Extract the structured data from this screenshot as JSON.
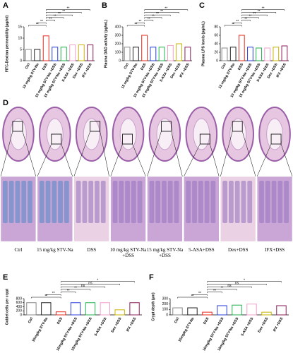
{
  "chart_data": [
    {
      "panel": "A",
      "type": "bar",
      "y_label": "FITC-Dextran permeability (μg/ml)",
      "categories": [
        "Ctrl",
        "15 mg/kg STV-Na",
        "DSS",
        "10 mg/kg STV-Na +DSS",
        "15 mg/kg STV-Na +DSS",
        "5-ASA +DSS",
        "Dex +DSS",
        "IFX +DSS"
      ],
      "values": [
        5,
        5,
        11,
        6,
        6,
        7,
        7,
        7
      ],
      "colors": [
        "#888888",
        "#222222",
        "#e8281e",
        "#2a3fd6",
        "#22b24c",
        "#f0a0c8",
        "#c8b400",
        "#8a1e5a"
      ],
      "ylim": [
        0,
        15
      ],
      "yticks": [
        0,
        5,
        10,
        15
      ],
      "significance": [
        {
          "label": "**",
          "between": [
            0,
            2
          ]
        },
        {
          "label": "**",
          "between": [
            1,
            2
          ]
        },
        {
          "label": "**",
          "between": [
            2,
            3
          ]
        },
        {
          "label": "**",
          "between": [
            2,
            4
          ]
        },
        {
          "label": "**",
          "between": [
            2,
            5
          ]
        },
        {
          "label": "**",
          "between": [
            2,
            6
          ]
        },
        {
          "label": "**",
          "between": [
            2,
            7
          ]
        }
      ]
    },
    {
      "panel": "B",
      "type": "bar",
      "y_label": "Plasma DAO activity (pg/mL)",
      "categories": [
        "Ctrl",
        "15 mg/kg STV-Na",
        "DSS",
        "10 mg/kg STV-Na +DSS",
        "15 mg/kg STV-Na +DSS",
        "5-ASA +DSS",
        "Dex +DSS",
        "IFX +DSS"
      ],
      "values": [
        160,
        160,
        300,
        160,
        160,
        180,
        200,
        160
      ],
      "colors": [
        "#888888",
        "#222222",
        "#e8281e",
        "#2a3fd6",
        "#22b24c",
        "#f0a0c8",
        "#c8b400",
        "#8a1e5a"
      ],
      "ylim": [
        0,
        400
      ],
      "yticks": [
        0,
        100,
        200,
        300,
        400
      ],
      "significance": [
        {
          "label": "**",
          "between": [
            0,
            2
          ]
        },
        {
          "label": "**",
          "between": [
            1,
            2
          ]
        },
        {
          "label": "**",
          "between": [
            2,
            3
          ]
        },
        {
          "label": "**",
          "between": [
            2,
            4
          ]
        },
        {
          "label": "**",
          "between": [
            2,
            5
          ]
        },
        {
          "label": "**",
          "between": [
            2,
            6
          ]
        },
        {
          "label": "**",
          "between": [
            2,
            7
          ]
        }
      ]
    },
    {
      "panel": "C",
      "type": "bar",
      "y_label": "Plasma LPS levels (pg/mL)",
      "categories": [
        "Ctrl",
        "15 mg/kg STV-Na",
        "DSS",
        "10 mg/kg STV-Na +DSS",
        "15 mg/kg STV-Na +DSS",
        "5-ASA +DSS",
        "Dex +DSS",
        "IFX +DSS"
      ],
      "values": [
        30,
        32,
        60,
        32,
        30,
        30,
        32,
        35
      ],
      "colors": [
        "#888888",
        "#222222",
        "#e8281e",
        "#2a3fd6",
        "#22b24c",
        "#f0a0c8",
        "#c8b400",
        "#8a1e5a"
      ],
      "ylim": [
        0,
        80
      ],
      "yticks": [
        0,
        20,
        40,
        60,
        80
      ],
      "significance": [
        {
          "label": "**",
          "between": [
            0,
            2
          ]
        },
        {
          "label": "**",
          "between": [
            1,
            2
          ]
        },
        {
          "label": "**",
          "between": [
            2,
            3
          ]
        },
        {
          "label": "**",
          "between": [
            2,
            4
          ]
        },
        {
          "label": "**",
          "between": [
            2,
            5
          ]
        },
        {
          "label": "**",
          "between": [
            2,
            6
          ]
        },
        {
          "label": "**",
          "between": [
            2,
            7
          ]
        }
      ]
    },
    {
      "panel": "E",
      "type": "bar",
      "y_label": "Goblet cells per crypt",
      "categories": [
        "Ctrl",
        "15mg/kg STV-Na",
        "DSS",
        "10mg/kg STV-Na +DSS",
        "15mg/kg STV-Na +DSS",
        "5-ASA +DSS",
        "Dex +DSS",
        "IFX +DSS"
      ],
      "values": [
        600,
        600,
        150,
        600,
        600,
        600,
        250,
        600
      ],
      "colors": [
        "#888888",
        "#222222",
        "#e8281e",
        "#2a3fd6",
        "#22b24c",
        "#f0a0c8",
        "#c8b400",
        "#8a1e5a"
      ],
      "ylim": [
        0,
        800
      ],
      "yticks": [
        0,
        200,
        400,
        600,
        800
      ],
      "significance": [
        {
          "label": "**",
          "between": [
            0,
            2
          ]
        },
        {
          "label": "**",
          "between": [
            1,
            2
          ]
        },
        {
          "label": "**",
          "between": [
            2,
            3
          ]
        },
        {
          "label": "**",
          "between": [
            2,
            4
          ]
        },
        {
          "label": "ns",
          "between": [
            2,
            5
          ]
        },
        {
          "label": "ns",
          "between": [
            2,
            6
          ]
        },
        {
          "label": "*",
          "between": [
            2,
            7
          ]
        }
      ]
    },
    {
      "panel": "F",
      "type": "bar",
      "y_label": "Crypt depth (μm)",
      "categories": [
        "Ctrl",
        "15mg/kg STV-Na",
        "DSS",
        "10mg/kg STV-Na +DSS",
        "15mg/kg STV-Na +DSS",
        "5-ASA +DSS",
        "Dex +DSS",
        "IFX +DSS"
      ],
      "values": [
        130,
        130,
        50,
        170,
        180,
        200,
        50,
        170
      ],
      "colors": [
        "#888888",
        "#222222",
        "#e8281e",
        "#2a3fd6",
        "#22b24c",
        "#f0a0c8",
        "#c8b400",
        "#8a1e5a"
      ],
      "ylim": [
        0,
        300
      ],
      "yticks": [
        0,
        100,
        200,
        300
      ],
      "significance": [
        {
          "label": "**",
          "between": [
            0,
            2
          ]
        },
        {
          "label": "**",
          "between": [
            1,
            2
          ]
        },
        {
          "label": "**",
          "between": [
            2,
            3
          ]
        },
        {
          "label": "**",
          "between": [
            2,
            4
          ]
        },
        {
          "label": "ns",
          "between": [
            2,
            5
          ]
        },
        {
          "label": "ns",
          "between": [
            2,
            6
          ]
        },
        {
          "label": "*",
          "between": [
            2,
            7
          ]
        }
      ]
    }
  ],
  "histology": {
    "panel": "D",
    "captions": [
      "Ctrl",
      "15 mg/kg STV-Na",
      "DSS",
      "10 mg/kg STV-Na +DSS",
      "15 mg/kg STV-Na +DSS",
      "5-ASA+DSS",
      "Dex+DSS",
      "IFX+DSS"
    ]
  }
}
